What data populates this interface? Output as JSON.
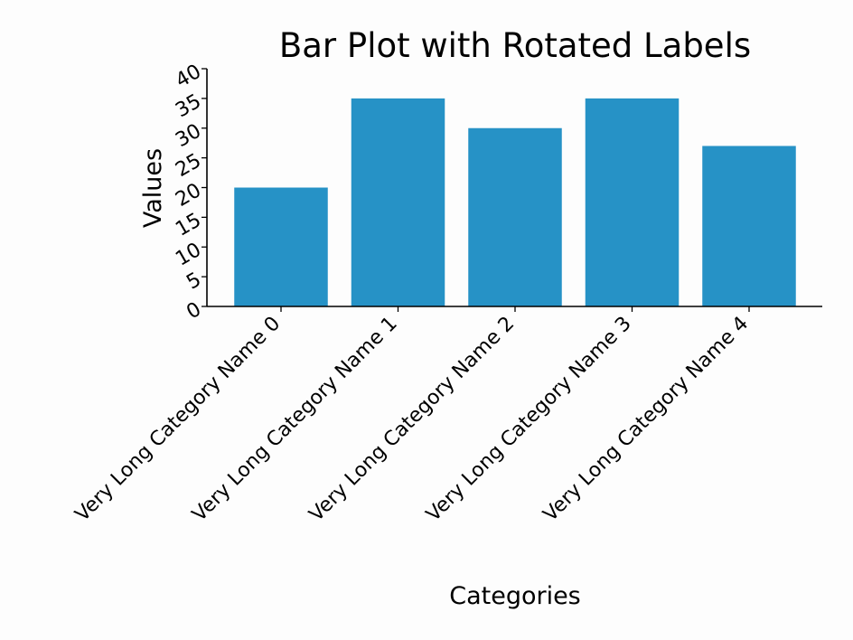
{
  "chart_data": {
    "type": "bar",
    "title": "Bar Plot with Rotated Labels",
    "xlabel": "Categories",
    "ylabel": "Values",
    "categories": [
      "Very Long Category Name 0",
      "Very Long Category Name 1",
      "Very Long Category Name 2",
      "Very Long Category Name 3",
      "Very Long Category Name 4"
    ],
    "values": [
      20,
      35,
      30,
      35,
      27
    ],
    "ylim": [
      0,
      40
    ],
    "yticks": [
      "0",
      "5",
      "10",
      "15",
      "20",
      "25",
      "30",
      "35",
      "40"
    ],
    "bar_color": "#2692c6",
    "grid": false,
    "legend": "none"
  }
}
